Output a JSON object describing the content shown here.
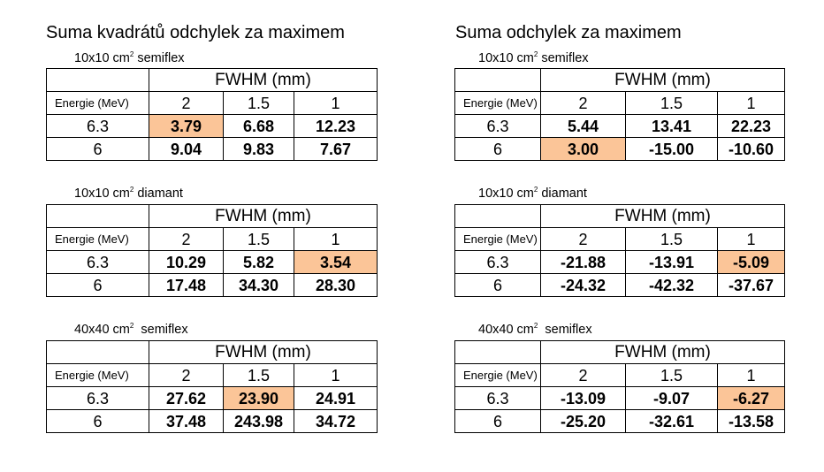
{
  "left_title": "Suma kvadrátů odchylek za maximem",
  "right_title": "Suma odchylek za maximem",
  "highlight_color": "#fbc598",
  "left": [
    {
      "caption_pre": "10x10 cm",
      "caption_sup": "2",
      "caption_post": " semiflex",
      "fwhm_label": "FWHM (mm)",
      "energy_label": "Energie (MeV)",
      "fwhm": [
        "2",
        "1.5",
        "1"
      ],
      "rows": [
        {
          "energy": "6.3",
          "values": [
            "3.79",
            "6.68",
            "12.23"
          ],
          "highlighted": "3.79"
        },
        {
          "energy": "6",
          "values": [
            "9.04",
            "9.83",
            "7.67"
          ]
        }
      ]
    },
    {
      "caption_pre": "10x10 cm",
      "caption_sup": "2",
      "caption_post": " diamant",
      "fwhm_label": "FWHM (mm)",
      "energy_label": "Energie (MeV)",
      "fwhm": [
        "2",
        "1.5",
        "1"
      ],
      "rows": [
        {
          "energy": "6.3",
          "values": [
            "10.29",
            "5.82",
            "3.54"
          ],
          "highlighted": "3.54"
        },
        {
          "energy": "6",
          "values": [
            "17.48",
            "34.30",
            "28.30"
          ]
        }
      ]
    },
    {
      "caption_pre": "40x40 cm",
      "caption_sup": "2",
      "caption_post": "  semiflex",
      "fwhm_label": "FWHM (mm)",
      "energy_label": "Energie (MeV)",
      "fwhm": [
        "2",
        "1.5",
        "1"
      ],
      "rows": [
        {
          "energy": "6.3",
          "values": [
            "27.62",
            "23.90",
            "24.91"
          ],
          "highlighted": "23.90"
        },
        {
          "energy": "6",
          "values": [
            "37.48",
            "243.98",
            "34.72"
          ]
        }
      ]
    }
  ],
  "right": [
    {
      "caption_pre": "10x10 cm",
      "caption_sup": "2",
      "caption_post": " semiflex",
      "fwhm_label": "FWHM (mm)",
      "energy_label": "Energie (MeV)",
      "fwhm": [
        "2",
        "1.5",
        "1"
      ],
      "rows": [
        {
          "energy": "6.3",
          "values": [
            "5.44",
            "13.41",
            "22.23"
          ]
        },
        {
          "energy": "6",
          "values": [
            "3.00",
            "-15.00",
            "-10.60"
          ],
          "highlighted": "3.00"
        }
      ]
    },
    {
      "caption_pre": "10x10 cm",
      "caption_sup": "2",
      "caption_post": " diamant",
      "fwhm_label": "FWHM (mm)",
      "energy_label": "Energie (MeV)",
      "fwhm": [
        "2",
        "1.5",
        "1"
      ],
      "rows": [
        {
          "energy": "6.3",
          "values": [
            "-21.88",
            "-13.91",
            "-5.09"
          ],
          "highlighted": "-5.09"
        },
        {
          "energy": "6",
          "values": [
            "-24.32",
            "-42.32",
            "-37.67"
          ]
        }
      ]
    },
    {
      "caption_pre": "40x40 cm",
      "caption_sup": "2",
      "caption_post": "  semiflex",
      "fwhm_label": "FWHM (mm)",
      "energy_label": "Energie (MeV)",
      "fwhm": [
        "2",
        "1.5",
        "1"
      ],
      "rows": [
        {
          "energy": "6.3",
          "values": [
            "-13.09",
            "-9.07",
            "-6.27"
          ],
          "highlighted": "-6.27"
        },
        {
          "energy": "6",
          "values": [
            "-25.20",
            "-32.61",
            "-13.58"
          ]
        }
      ]
    }
  ]
}
